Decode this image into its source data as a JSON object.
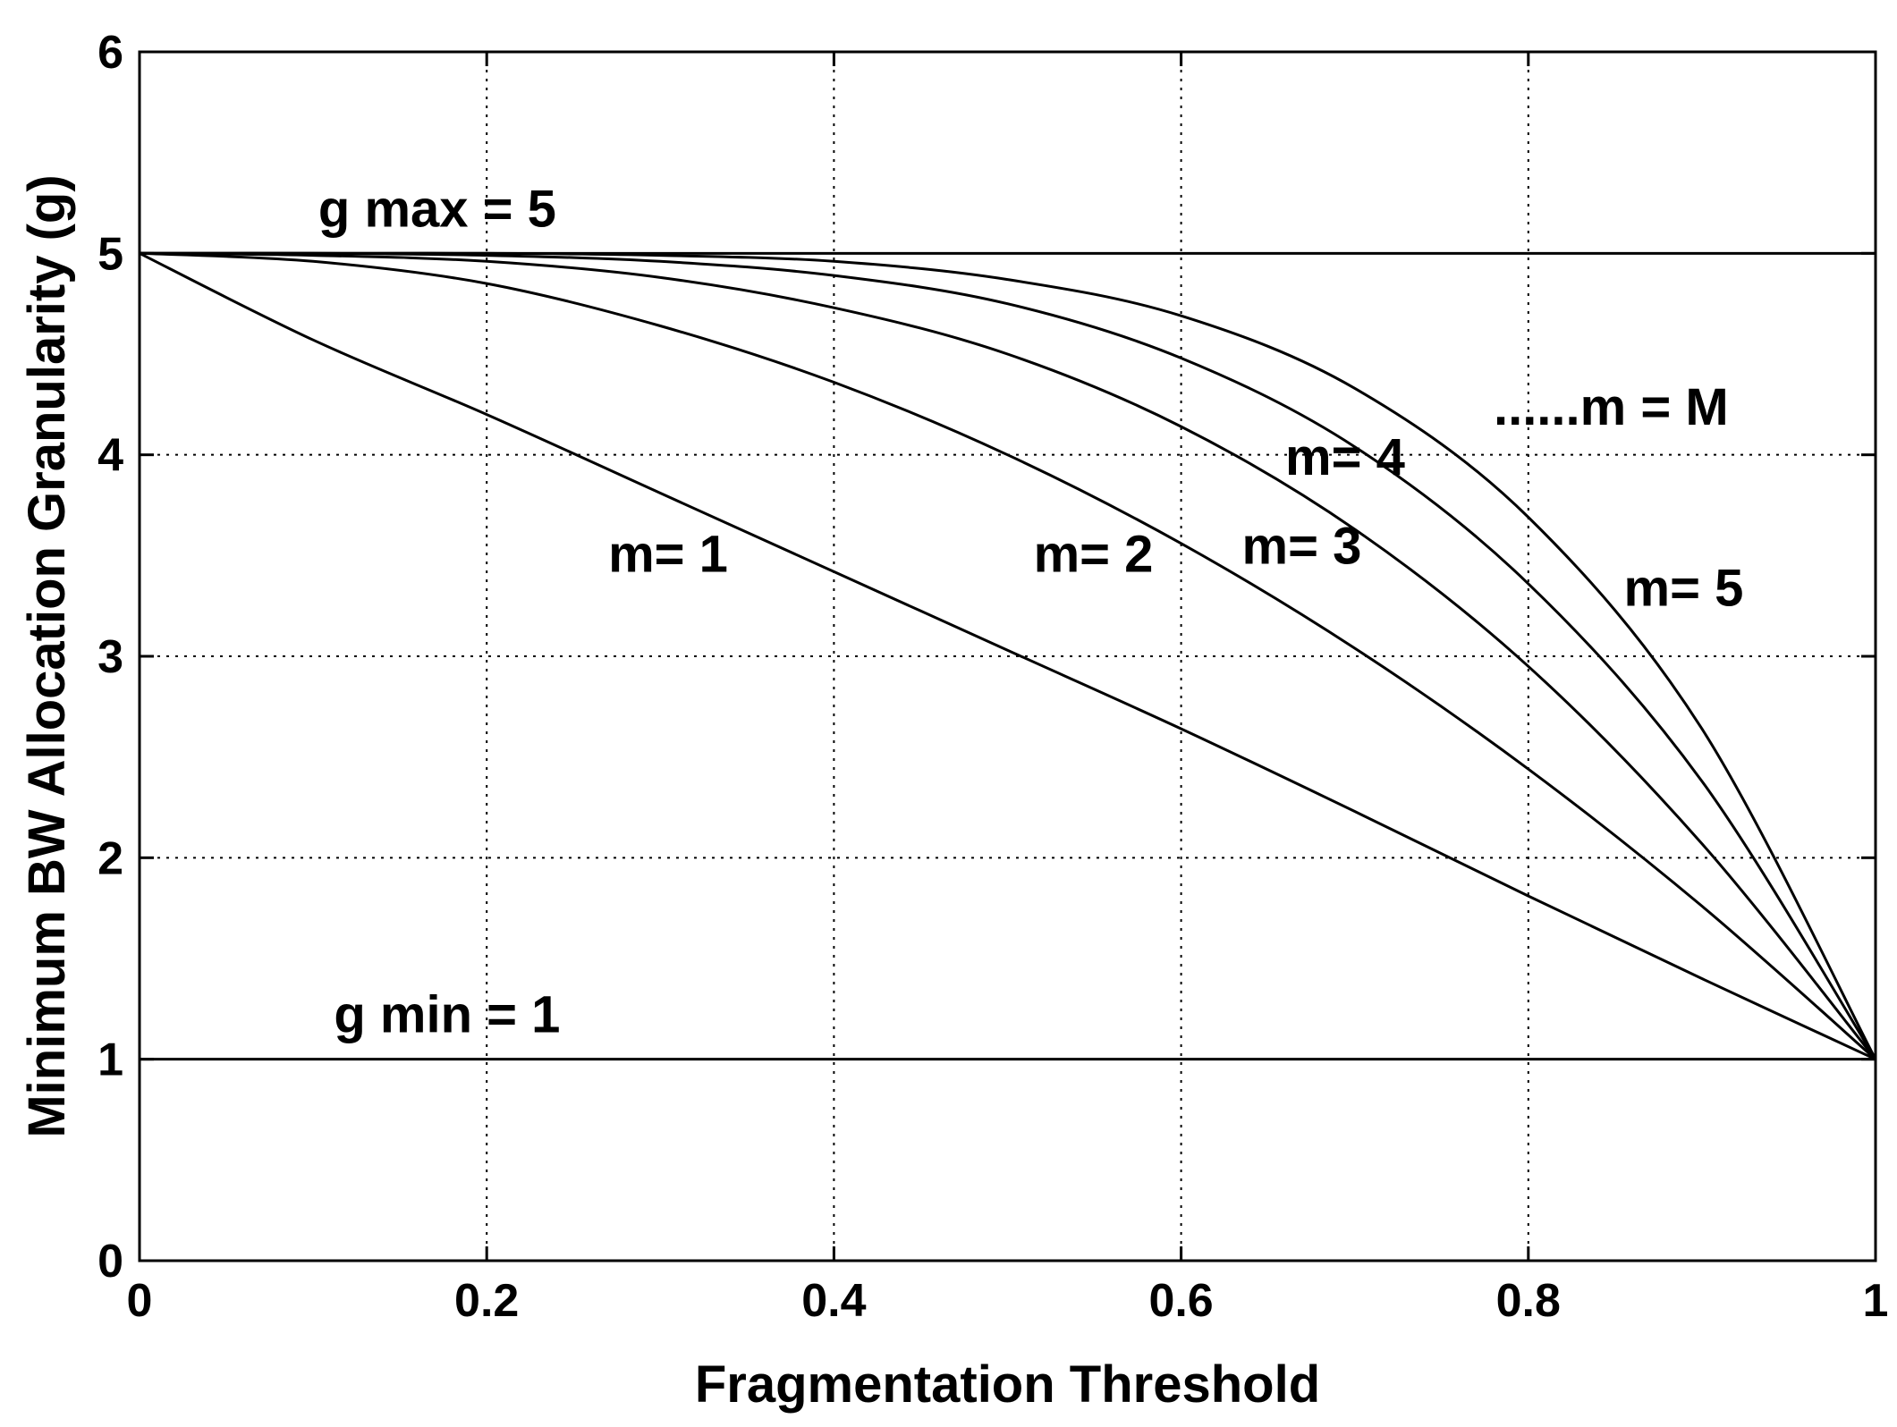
{
  "chart_data": {
    "type": "line",
    "xlabel": "Fragmentation Threshold",
    "ylabel": "Minimum BW Allocation Granularity (g)",
    "xlim": [
      0,
      1
    ],
    "ylim": [
      0,
      6
    ],
    "x_ticks": [
      "0",
      "0.2",
      "0.4",
      "0.6",
      "0.8",
      "1"
    ],
    "y_ticks": [
      "0",
      "1",
      "2",
      "3",
      "4",
      "5",
      "6"
    ],
    "grid": true,
    "reference_lines": [
      {
        "y": 5,
        "label": "g max = 5"
      },
      {
        "y": 1,
        "label": "g min = 1"
      }
    ],
    "x": [
      0,
      0.1,
      0.2,
      0.3,
      0.4,
      0.5,
      0.6,
      0.7,
      0.8,
      0.9,
      1.0
    ],
    "series": [
      {
        "name": "m= 1",
        "values": [
          5.0,
          4.57,
          4.2,
          3.81,
          3.42,
          3.03,
          2.64,
          2.23,
          1.81,
          1.4,
          1.0
        ]
      },
      {
        "name": "m= 2",
        "values": [
          5.0,
          4.96,
          4.85,
          4.64,
          4.36,
          4.0,
          3.56,
          3.04,
          2.44,
          1.76,
          1.0
        ]
      },
      {
        "name": "m= 3",
        "values": [
          5.0,
          4.99,
          4.96,
          4.88,
          4.73,
          4.5,
          4.14,
          3.63,
          2.95,
          2.07,
          1.0
        ]
      },
      {
        "name": "m= 4",
        "values": [
          5.0,
          5.0,
          4.99,
          4.96,
          4.89,
          4.75,
          4.48,
          4.04,
          3.36,
          2.38,
          1.0
        ]
      },
      {
        "name": "m= 5",
        "values": [
          5.0,
          5.0,
          5.0,
          4.99,
          4.96,
          4.87,
          4.69,
          4.33,
          3.69,
          2.64,
          1.0
        ]
      }
    ],
    "annotations": [
      {
        "text": "......m = M",
        "x": 0.78,
        "y": 4.15
      },
      {
        "text": "m= 4",
        "x": 0.66,
        "y": 3.9
      },
      {
        "text": "m= 1",
        "x": 0.27,
        "y": 3.42
      },
      {
        "text": "m= 2",
        "x": 0.515,
        "y": 3.42
      },
      {
        "text": "m= 3",
        "x": 0.635,
        "y": 3.46
      },
      {
        "text": "m= 5",
        "x": 0.855,
        "y": 3.25
      }
    ]
  }
}
